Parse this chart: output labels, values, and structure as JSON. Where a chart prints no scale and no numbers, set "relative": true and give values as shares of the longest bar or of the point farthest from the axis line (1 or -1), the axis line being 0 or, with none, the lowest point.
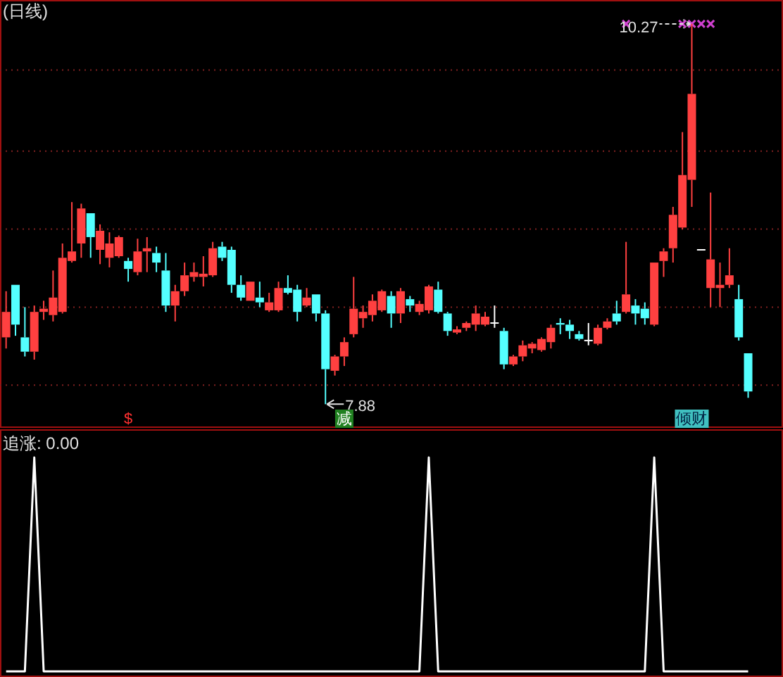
{
  "chart_data": [
    {
      "type": "candlestick",
      "title": "(日线)",
      "categories": [
        null,
        null,
        null,
        null,
        null,
        null,
        null,
        null,
        null,
        null,
        null,
        null,
        null,
        null,
        null,
        null,
        null,
        null,
        null,
        null,
        null,
        null,
        null,
        null,
        null,
        null,
        null,
        null,
        null,
        null,
        null,
        null,
        null,
        null,
        null,
        null,
        null,
        null,
        null,
        null,
        null,
        null,
        null,
        null,
        null,
        null,
        null,
        null,
        null,
        null,
        null,
        null,
        null,
        null,
        null,
        null,
        null,
        null,
        null,
        null,
        null,
        null,
        null,
        null,
        null,
        null,
        null,
        null,
        null,
        null,
        null,
        null,
        null,
        null,
        null,
        null,
        null,
        null,
        null,
        null
      ],
      "ohlc": [
        [
          8.3,
          8.59,
          8.23,
          8.46
        ],
        [
          8.63,
          8.63,
          8.31,
          8.38
        ],
        [
          8.3,
          8.49,
          8.18,
          8.21
        ],
        [
          8.21,
          8.5,
          8.16,
          8.46
        ],
        [
          8.46,
          8.53,
          8.41,
          8.48
        ],
        [
          8.44,
          8.72,
          8.4,
          8.55
        ],
        [
          8.46,
          8.89,
          8.45,
          8.8
        ],
        [
          8.78,
          9.15,
          8.77,
          8.84
        ],
        [
          8.89,
          9.14,
          8.8,
          9.11
        ],
        [
          9.08,
          9.08,
          8.8,
          8.93
        ],
        [
          8.85,
          9.01,
          8.76,
          8.97
        ],
        [
          8.8,
          8.96,
          8.74,
          8.89
        ],
        [
          8.81,
          8.94,
          8.8,
          8.93
        ],
        [
          8.78,
          8.8,
          8.65,
          8.73
        ],
        [
          8.71,
          8.92,
          8.69,
          8.84
        ],
        [
          8.84,
          8.93,
          8.71,
          8.86
        ],
        [
          8.83,
          8.87,
          8.71,
          8.77
        ],
        [
          8.72,
          8.83,
          8.46,
          8.5
        ],
        [
          8.5,
          8.63,
          8.4,
          8.59
        ],
        [
          8.59,
          8.77,
          8.56,
          8.69
        ],
        [
          8.68,
          8.77,
          8.65,
          8.71
        ],
        [
          8.68,
          8.81,
          8.62,
          8.7
        ],
        [
          8.69,
          8.9,
          8.68,
          8.86
        ],
        [
          8.87,
          8.9,
          8.78,
          8.8
        ],
        [
          8.85,
          8.87,
          8.58,
          8.63
        ],
        [
          8.63,
          8.69,
          8.53,
          8.55
        ],
        [
          8.53,
          8.65,
          8.53,
          8.65
        ],
        [
          8.55,
          8.65,
          8.49,
          8.52
        ],
        [
          8.47,
          8.58,
          8.46,
          8.52
        ],
        [
          8.47,
          8.65,
          8.46,
          8.61
        ],
        [
          8.61,
          8.69,
          8.57,
          8.58
        ],
        [
          8.6,
          8.63,
          8.4,
          8.46
        ],
        [
          8.5,
          8.61,
          8.49,
          8.55
        ],
        [
          8.57,
          8.57,
          8.4,
          8.45
        ],
        [
          8.45,
          8.47,
          7.88,
          8.1
        ],
        [
          8.09,
          8.19,
          8.06,
          8.18
        ],
        [
          8.18,
          8.3,
          8.12,
          8.27
        ],
        [
          8.32,
          8.68,
          8.3,
          8.48
        ],
        [
          8.42,
          8.5,
          8.36,
          8.46
        ],
        [
          8.44,
          8.57,
          8.4,
          8.53
        ],
        [
          8.47,
          8.6,
          8.46,
          8.59
        ],
        [
          8.56,
          8.59,
          8.36,
          8.45
        ],
        [
          8.45,
          8.61,
          8.39,
          8.59
        ],
        [
          8.54,
          8.56,
          8.46,
          8.5
        ],
        [
          8.46,
          8.53,
          8.44,
          8.51
        ],
        [
          8.47,
          8.63,
          8.45,
          8.62
        ],
        [
          8.6,
          8.65,
          8.45,
          8.46
        ],
        [
          8.45,
          8.46,
          8.31,
          8.34
        ],
        [
          8.33,
          8.37,
          8.32,
          8.35
        ],
        [
          8.36,
          8.4,
          8.34,
          8.39
        ],
        [
          8.38,
          8.5,
          8.34,
          8.45
        ],
        [
          8.38,
          8.46,
          8.37,
          8.43
        ],
        [
          8.39,
          8.5,
          8.36,
          8.39
        ],
        [
          8.34,
          8.36,
          8.1,
          8.13
        ],
        [
          8.13,
          8.19,
          8.12,
          8.18
        ],
        [
          8.18,
          8.28,
          8.15,
          8.25
        ],
        [
          8.23,
          8.27,
          8.2,
          8.26
        ],
        [
          8.22,
          8.3,
          8.21,
          8.29
        ],
        [
          8.27,
          8.38,
          8.23,
          8.36
        ],
        [
          8.39,
          8.42,
          8.32,
          8.38
        ],
        [
          8.38,
          8.41,
          8.29,
          8.34
        ],
        [
          8.32,
          8.34,
          8.28,
          8.29
        ],
        [
          8.28,
          8.39,
          8.25,
          8.28
        ],
        [
          8.26,
          8.38,
          8.25,
          8.36
        ],
        [
          8.36,
          8.42,
          8.35,
          8.4
        ],
        [
          8.45,
          8.53,
          8.38,
          8.4
        ],
        [
          8.46,
          8.9,
          8.45,
          8.57
        ],
        [
          8.5,
          8.54,
          8.38,
          8.45
        ],
        [
          8.48,
          8.52,
          8.38,
          8.42
        ],
        [
          8.38,
          8.77,
          8.37,
          8.77
        ],
        [
          8.78,
          8.86,
          8.68,
          8.84
        ],
        [
          8.86,
          9.12,
          8.77,
          9.07
        ],
        [
          8.99,
          9.59,
          8.98,
          9.32
        ],
        [
          9.29,
          10.27,
          9.12,
          9.83
        ],
        [
          8.85,
          8.85,
          8.85,
          8.85
        ],
        [
          8.61,
          9.21,
          8.49,
          8.79
        ],
        [
          8.61,
          8.77,
          8.49,
          8.63
        ],
        [
          8.63,
          8.86,
          8.61,
          8.69
        ],
        [
          8.54,
          8.63,
          8.28,
          8.3
        ],
        [
          8.2,
          8.2,
          7.92,
          7.96
        ]
      ],
      "series": [
        {
          "type": "scatter",
          "color": "#d040d0",
          "marker": "cross",
          "values": [
            null,
            null,
            null,
            null,
            null,
            null,
            null,
            null,
            null,
            null,
            null,
            null,
            null,
            null,
            null,
            null,
            null,
            null,
            null,
            null,
            null,
            null,
            null,
            null,
            null,
            null,
            null,
            null,
            null,
            null,
            null,
            null,
            null,
            null,
            null,
            null,
            null,
            null,
            null,
            null,
            null,
            null,
            null,
            null,
            null,
            null,
            null,
            null,
            null,
            null,
            null,
            null,
            null,
            null,
            null,
            null,
            null,
            null,
            null,
            null,
            null,
            null,
            null,
            null,
            null,
            null,
            10.27,
            null,
            null,
            null,
            null,
            null,
            10.27,
            10.27,
            10.27,
            10.27,
            null,
            null,
            null,
            null
          ]
        }
      ],
      "ylim": [
        7.74,
        10.42
      ],
      "yticks": [
        {
          "value": 8.0,
          "label": null
        },
        {
          "value": 8.49,
          "label": null
        },
        {
          "value": 8.98,
          "label": null
        },
        {
          "value": 9.47,
          "label": null
        },
        {
          "value": 9.98,
          "label": null
        }
      ],
      "grid": "y",
      "annotations": [
        "10.27",
        "7.88",
        "$",
        "减",
        "倾财"
      ]
    },
    {
      "type": "line",
      "title": "追涨: 0.00",
      "relative": true,
      "color": "#ffffff",
      "categories": [
        null,
        null,
        null,
        null,
        null,
        null,
        null,
        null,
        null,
        null,
        null,
        null,
        null,
        null,
        null,
        null,
        null,
        null,
        null,
        null,
        null,
        null,
        null,
        null,
        null,
        null,
        null,
        null,
        null,
        null,
        null,
        null,
        null,
        null,
        null,
        null,
        null,
        null,
        null,
        null,
        null,
        null,
        null,
        null,
        null,
        null,
        null,
        null,
        null,
        null,
        null,
        null,
        null,
        null,
        null,
        null,
        null,
        null,
        null,
        null,
        null,
        null,
        null,
        null,
        null,
        null,
        null,
        null,
        null,
        null,
        null,
        null,
        null,
        null,
        null,
        null,
        null,
        null,
        null,
        null
      ],
      "values": [
        0,
        0,
        0,
        1,
        0,
        0,
        0,
        0,
        0,
        0,
        0,
        0,
        0,
        0,
        0,
        0,
        0,
        0,
        0,
        0,
        0,
        0,
        0,
        0,
        0,
        0,
        0,
        0,
        0,
        0,
        0,
        0,
        0,
        0,
        0,
        0,
        0,
        0,
        0,
        0,
        0,
        0,
        0,
        0,
        0,
        1,
        0,
        0,
        0,
        0,
        0,
        0,
        0,
        0,
        0,
        0,
        0,
        0,
        0,
        0,
        0,
        0,
        0,
        0,
        0,
        0,
        0,
        0,
        0,
        1,
        0,
        0,
        0,
        0,
        0,
        0,
        0,
        0,
        0,
        0
      ]
    }
  ]
}
